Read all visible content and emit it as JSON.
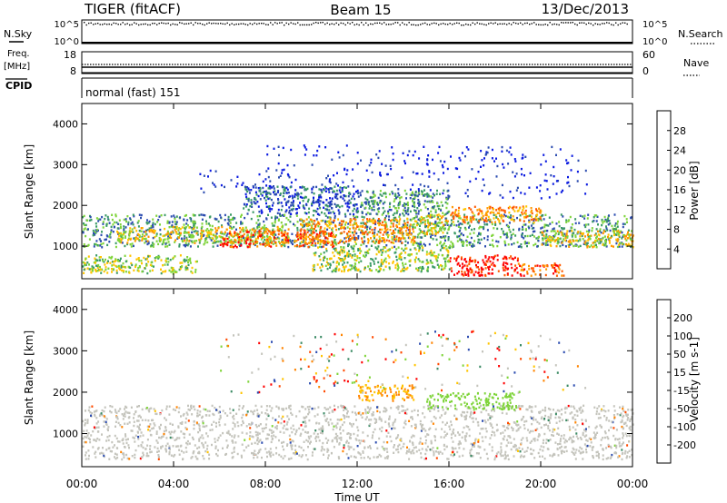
{
  "header": {
    "radar": "TIGER (fitACF)",
    "beam": "Beam 15",
    "date": "13/Dec/2013"
  },
  "sky_panel": {
    "left_label": "N.Sky",
    "right_label": "N.Search",
    "left_ticks": [
      "10^5",
      "10^0"
    ],
    "right_ticks": [
      "10^5",
      "10^0"
    ]
  },
  "freq_panel": {
    "left_label_1": "Freq.",
    "left_label_2": "[MHz]",
    "right_label": "Nave",
    "left_ticks": [
      "18",
      "8"
    ],
    "right_ticks": [
      "60",
      "0"
    ]
  },
  "cpid_panel": {
    "label": "CPID",
    "mode": "normal (fast) 151"
  },
  "chart_data": [
    {
      "type": "heatmap",
      "name": "power",
      "ylabel": "Slant Range [km]",
      "yticks": [
        "4000",
        "3000",
        "2000",
        "1000"
      ],
      "ylim": [
        200,
        4500
      ],
      "colorbar_label": "Power [dB]",
      "colorbar_ticks": [
        "28",
        "24",
        "20",
        "16",
        "12",
        "8",
        "4"
      ],
      "colorbar_colors": [
        "#ff0000",
        "#ff5a00",
        "#ff9600",
        "#ffc400",
        "#7fd43a",
        "#3a9a64",
        "#2c4cb0",
        "#0a1ae0"
      ],
      "regions": [
        {
          "t0": 0,
          "t1": 24,
          "r0": 1000,
          "r1": 1800,
          "level": 2
        },
        {
          "t0": 1.5,
          "t1": 9,
          "r0": 1100,
          "r1": 1500,
          "level": 4
        },
        {
          "t0": 6,
          "t1": 11,
          "r0": 1000,
          "r1": 1400,
          "level": 6
        },
        {
          "t0": 9.5,
          "t1": 14.5,
          "r0": 1100,
          "r1": 1700,
          "level": 5
        },
        {
          "t0": 14.5,
          "t1": 16,
          "r0": 1300,
          "r1": 1800,
          "level": 4
        },
        {
          "t0": 16,
          "t1": 20,
          "r0": 1600,
          "r1": 2000,
          "level": 5
        },
        {
          "t0": 20,
          "t1": 24,
          "r0": 1000,
          "r1": 1400,
          "level": 4
        },
        {
          "t0": 16,
          "t1": 19,
          "r0": 300,
          "r1": 800,
          "level": 7
        },
        {
          "t0": 19,
          "t1": 21,
          "r0": 300,
          "r1": 600,
          "level": 6
        },
        {
          "t0": 0,
          "t1": 5,
          "r0": 350,
          "r1": 800,
          "level": 3
        },
        {
          "t0": 10,
          "t1": 16,
          "r0": 400,
          "r1": 1000,
          "level": 3
        },
        {
          "t0": 7,
          "t1": 12,
          "r0": 1800,
          "r1": 2500,
          "level": 1
        },
        {
          "t0": 12,
          "t1": 16,
          "r0": 1800,
          "r1": 2400,
          "level": 2
        },
        {
          "t0": 5,
          "t1": 9,
          "r0": 2300,
          "r1": 2900,
          "level": 0
        },
        {
          "t0": 8,
          "t1": 13,
          "r0": 2500,
          "r1": 3500,
          "level": 0
        },
        {
          "t0": 13,
          "t1": 22,
          "r0": 2200,
          "r1": 3500,
          "level": 0
        }
      ]
    },
    {
      "type": "heatmap",
      "name": "velocity",
      "ylabel": "Slant Range [km]",
      "xlabel": "Time UT",
      "xticks": [
        "00:00",
        "04:00",
        "08:00",
        "12:00",
        "16:00",
        "20:00",
        "00:00"
      ],
      "yticks": [
        "4000",
        "3000",
        "2000",
        "1000"
      ],
      "ylim": [
        200,
        4500
      ],
      "colorbar_label": "Velocity [m s-1]",
      "colorbar_ticks": [
        "200",
        "100",
        "50",
        "15",
        "-15",
        "-50",
        "-100",
        "-200"
      ],
      "colorbar_colors": [
        "#2c4cb0",
        "#3a8a64",
        "#7fd43a",
        "#c4c4bc",
        "#c4c4bc",
        "#ffc400",
        "#ff8400",
        "#ff4a00",
        "#ff0000"
      ],
      "regions": [
        {
          "t0": 0,
          "t1": 24,
          "r0": 400,
          "r1": 1700,
          "level": "gray"
        },
        {
          "t0": 12,
          "t1": 14.5,
          "r0": 1800,
          "r1": 2200,
          "level": "orange"
        },
        {
          "t0": 15,
          "t1": 19,
          "r0": 1600,
          "r1": 2000,
          "level": "green"
        },
        {
          "t0": 6,
          "t1": 22,
          "r0": 2000,
          "r1": 3500,
          "level": "sparse"
        }
      ]
    }
  ]
}
